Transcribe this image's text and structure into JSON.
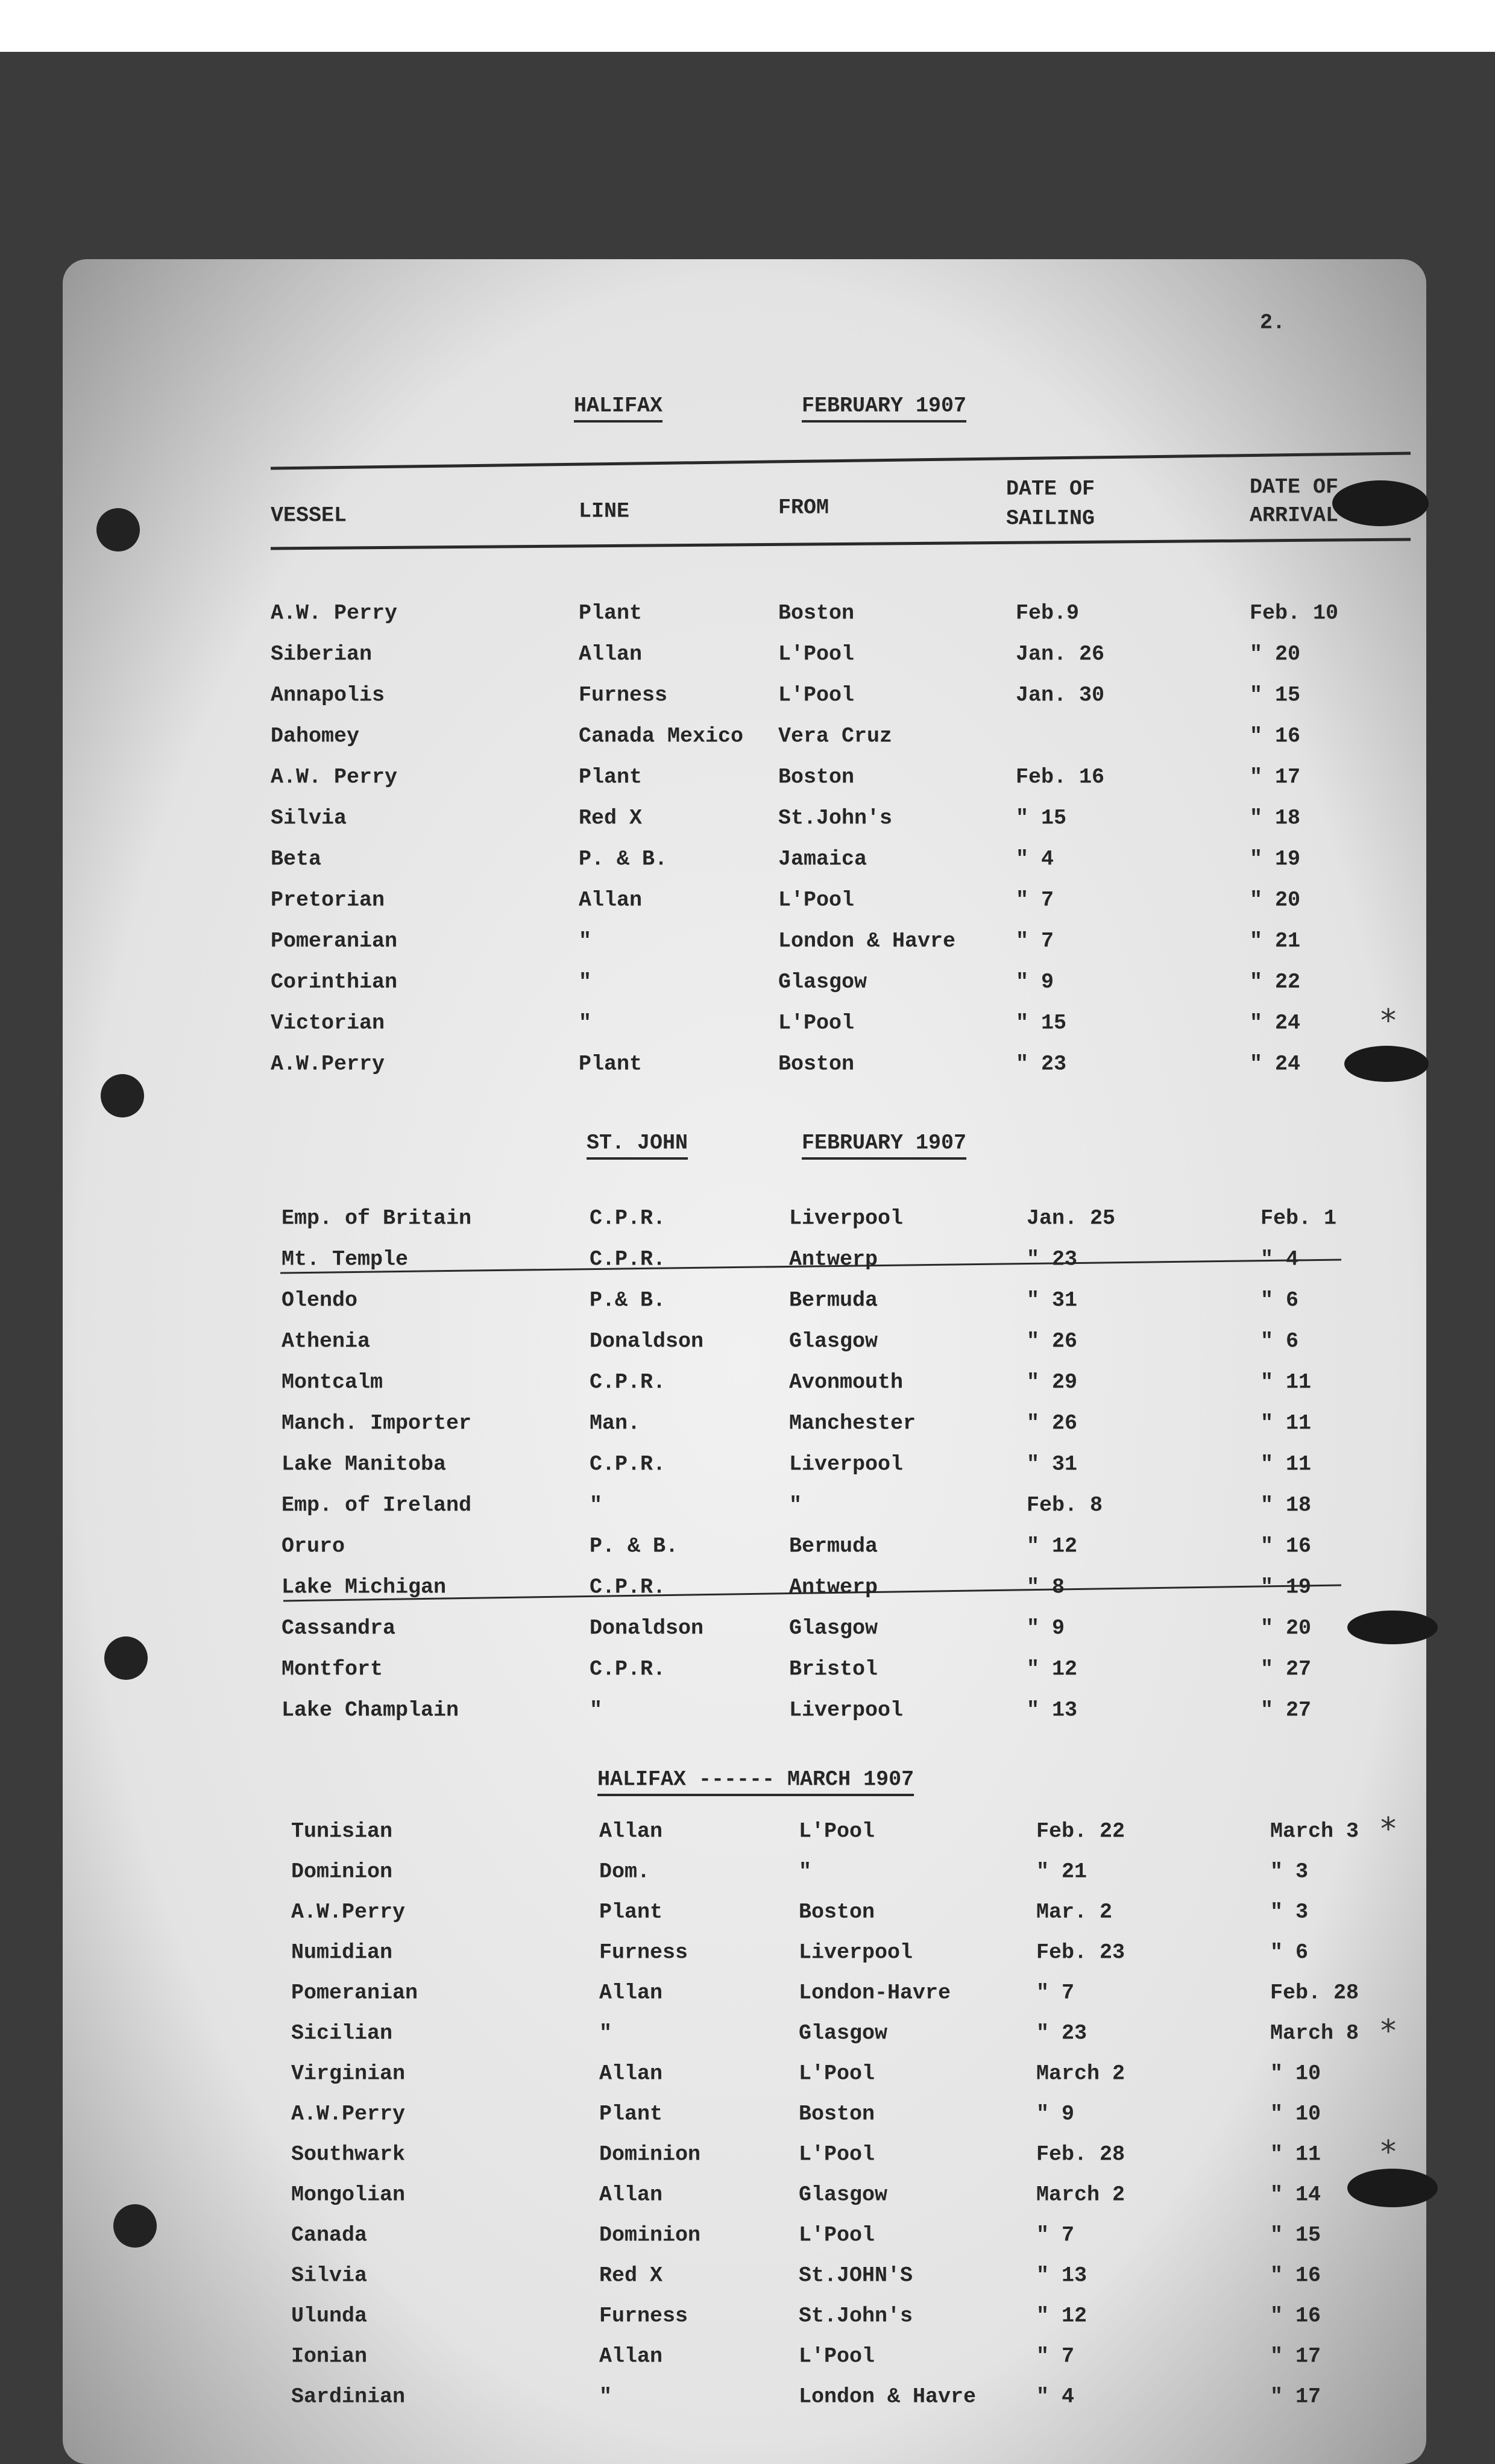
{
  "page_number": "2.",
  "header": {
    "vessel": "VESSEL",
    "line": "LINE",
    "from": "FROM",
    "sailing": [
      "DATE OF",
      "SAILING"
    ],
    "arrival": [
      "DATE OF",
      "ARRIVAL"
    ]
  },
  "sections": [
    {
      "title": [
        "HALIFAX",
        "FEBRUARY 1907"
      ],
      "rows": [
        {
          "vessel": "A.W. Perry",
          "line": "Plant",
          "from": "Boston",
          "sailing": "Feb.9",
          "arrival": "Feb. 10"
        },
        {
          "vessel": "Siberian",
          "line": "Allan",
          "from": "L'Pool",
          "sailing": "Jan. 26",
          "arrival": "\" 20"
        },
        {
          "vessel": "Annapolis",
          "line": "Furness",
          "from": "L'Pool",
          "sailing": "Jan. 30",
          "arrival": "\" 15"
        },
        {
          "vessel": "Dahomey",
          "line": "Canada Mexico",
          "from": "Vera Cruz",
          "arrival": "\" 16"
        },
        {
          "vessel": "A.W. Perry",
          "line": "Plant",
          "from": "Boston",
          "sailing": "Feb. 16",
          "arrival": "\" 17"
        },
        {
          "vessel": "Silvia",
          "line": "Red X",
          "from": "St.John's",
          "sailing": "\" 15",
          "arrival": "\" 18"
        },
        {
          "vessel": "Beta",
          "line": "P. & B.",
          "from": "Jamaica",
          "sailing": "\" 4",
          "arrival": "\" 19"
        },
        {
          "vessel": "Pretorian",
          "line": "Allan",
          "from": "L'Pool",
          "sailing": "\" 7",
          "arrival": "\" 20"
        },
        {
          "vessel": "Pomeranian",
          "line": "\"",
          "from": "London & Havre",
          "sailing": "\" 7",
          "arrival": "\" 21"
        },
        {
          "vessel": "Corinthian",
          "line": "\"",
          "from": "Glasgow",
          "sailing": "\" 9",
          "arrival": "\" 22"
        },
        {
          "vessel": "Victorian",
          "line": "\"",
          "from": "L'Pool",
          "sailing": "\" 15",
          "arrival": "\" 24",
          "note": "*"
        },
        {
          "vessel": "A.W.Perry",
          "line": "Plant",
          "from": "Boston",
          "sailing": "\" 23",
          "arrival": "\" 24"
        }
      ]
    },
    {
      "title": [
        "ST. JOHN",
        "FEBRUARY 1907"
      ],
      "rows": [
        {
          "vessel": "Emp. of Britain",
          "line": "C.P.R.",
          "from": "Liverpool",
          "sailing": "Jan. 25",
          "arrival": "Feb. 1"
        },
        {
          "vessel": "Mt. Temple",
          "line": "C.P.R.",
          "from": "Antwerp",
          "sailing": "\" 23",
          "arrival": "\" 4"
        },
        {
          "vessel": "Olendo",
          "line": "P.& B.",
          "from": "Bermuda",
          "sailing": "\" 31",
          "arrival": "\" 6"
        },
        {
          "vessel": "Athenia",
          "line": "Donaldson",
          "from": "Glasgow",
          "sailing": "\" 26",
          "arrival": "\" 6"
        },
        {
          "vessel": "Montcalm",
          "line": "C.P.R.",
          "from": "Avonmouth",
          "sailing": "\" 29",
          "arrival": "\" 11"
        },
        {
          "vessel": "Manch. Importer",
          "line": "Man.",
          "from": "Manchester",
          "sailing": "\" 26",
          "arrival": "\" 11"
        },
        {
          "vessel": "Lake Manitoba",
          "line": "C.P.R.",
          "from": "Liverpool",
          "sailing": "\" 31",
          "arrival": "\" 11"
        },
        {
          "vessel": "Emp. of Ireland",
          "line": "\"",
          "from": "\"",
          "sailing": "Feb. 8",
          "arrival": "\" 18"
        },
        {
          "vessel": "Oruro",
          "line": "P. & B.",
          "from": "Bermuda",
          "sailing": "\" 12",
          "arrival": "\" 16"
        },
        {
          "vessel": "Lake Michigan",
          "line": "C.P.R.",
          "from": "Antwerp",
          "sailing": "\" 8",
          "arrival": "\" 19"
        },
        {
          "vessel": "Cassandra",
          "line": "Donaldson",
          "from": "Glasgow",
          "sailing": "\" 9",
          "arrival": "\" 20"
        },
        {
          "vessel": "Montfort",
          "line": "C.P.R.",
          "from": "Bristol",
          "sailing": "\" 12",
          "arrival": "\" 27"
        },
        {
          "vessel": "Lake Champlain",
          "line": "\"",
          "from": "Liverpool",
          "sailing": "\" 13",
          "arrival": "\" 27"
        }
      ]
    },
    {
      "title": [
        "HALIFAX ------ MARCH 1907"
      ],
      "rows": [
        {
          "vessel": "Tunisian",
          "line": "Allan",
          "from": "L'Pool",
          "sailing": "Feb. 22",
          "arrival": "March 3",
          "note": "*"
        },
        {
          "vessel": "Dominion",
          "line": "Dom.",
          "from": "\"",
          "sailing": "\" 21",
          "arrival": "\" 3"
        },
        {
          "vessel": "A.W.Perry",
          "line": "Plant",
          "from": "Boston",
          "sailing": "Mar. 2",
          "arrival": "\" 3"
        },
        {
          "vessel": "Numidian",
          "line": "Furness",
          "from": "Liverpool",
          "sailing": "Feb. 23",
          "arrival": "\" 6"
        },
        {
          "vessel": "Pomeranian",
          "line": "Allan",
          "from": "London-Havre",
          "sailing": "\" 7",
          "arrival": "Feb. 28"
        },
        {
          "vessel": "Sicilian",
          "line": "\"",
          "from": "Glasgow",
          "sailing": "\" 23",
          "arrival": "March 8",
          "note": "*"
        },
        {
          "vessel": "Virginian",
          "line": "Allan",
          "from": "L'Pool",
          "sailing": "March 2",
          "arrival": "\" 10"
        },
        {
          "vessel": "A.W.Perry",
          "line": "Plant",
          "from": "Boston",
          "sailing": "\" 9",
          "arrival": "\" 10"
        },
        {
          "vessel": "Southwark",
          "line": "Dominion",
          "from": "L'Pool",
          "sailing": "Feb. 28",
          "arrival": "\" 11",
          "note": "*"
        },
        {
          "vessel": "Mongolian",
          "line": "Allan",
          "from": "Glasgow",
          "sailing": "March 2",
          "arrival": "\" 14"
        },
        {
          "vessel": "Canada",
          "line": "Dominion",
          "from": "L'Pool",
          "sailing": "\" 7",
          "arrival": "\" 15"
        },
        {
          "vessel": "Silvia",
          "line": "Red X",
          "from": "St.JOHN'S",
          "sailing": "\" 13",
          "arrival": "\" 16"
        },
        {
          "vessel": "Ulunda",
          "line": "Furness",
          "from": "St.John's",
          "sailing": "\" 12",
          "arrival": "\" 16"
        },
        {
          "vessel": "Ionian",
          "line": "Allan",
          "from": "L'Pool",
          "sailing": "\" 7",
          "arrival": "\" 17"
        },
        {
          "vessel": "Sardinian",
          "line": "\"",
          "from": "London & Havre",
          "sailing": "\" 4",
          "arrival": "\" 17"
        }
      ]
    }
  ]
}
